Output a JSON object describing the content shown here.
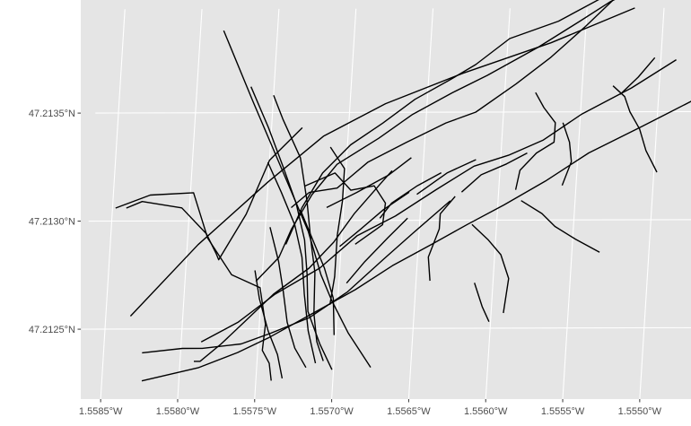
{
  "chart_data": {
    "type": "map-lines",
    "title": "",
    "xlabel": "",
    "ylabel": "",
    "x_ticks": [
      "1.5585°W",
      "1.5580°W",
      "1.5575°W",
      "1.5570°W",
      "1.5565°W",
      "1.5560°W",
      "1.5555°W",
      "1.5550°W"
    ],
    "y_ticks": [
      "47.2125°N",
      "47.2130°N",
      "47.2135°N"
    ],
    "xlim": [
      -1.55865,
      -1.55459
    ],
    "ylim": [
      47.21217,
      47.21398
    ],
    "background": "#e5e5e5",
    "grid_color": "#ffffff",
    "line_color": "#000000",
    "lines": [
      [
        [
          -1.55785,
          47.21388
        ],
        [
          -1.55763,
          47.21355
        ],
        [
          -1.55737,
          47.21317
        ],
        [
          -1.55722,
          47.21295
        ],
        [
          -1.55712,
          47.21275
        ],
        [
          -1.55704,
          47.21263
        ],
        [
          -1.55692,
          47.21248
        ],
        [
          -1.55676,
          47.21232
        ]
      ],
      [
        [
          -1.55834,
          47.21256
        ],
        [
          -1.55793,
          47.21289
        ],
        [
          -1.5575,
          47.21318
        ],
        [
          -1.55716,
          47.21339
        ],
        [
          -1.55677,
          47.21354
        ],
        [
          -1.55628,
          47.21368
        ],
        [
          -1.55572,
          47.21382
        ],
        [
          -1.55519,
          47.21398
        ]
      ],
      [
        [
          -1.55848,
          47.21306
        ],
        [
          -1.55826,
          47.21312
        ],
        [
          -1.55798,
          47.21313
        ],
        [
          -1.55787,
          47.21292
        ],
        [
          -1.5577,
          47.21275
        ],
        [
          -1.55751,
          47.21269
        ],
        [
          -1.55746,
          47.21252
        ],
        [
          -1.55747,
          47.2124
        ],
        [
          -1.55742,
          47.21234
        ],
        [
          -1.5574,
          47.21226
        ]
      ],
      [
        [
          -1.55841,
          47.21306
        ],
        [
          -1.55831,
          47.21309
        ],
        [
          -1.55805,
          47.21306
        ],
        [
          -1.55788,
          47.21294
        ],
        [
          -1.55781,
          47.21285
        ],
        [
          -1.55779,
          47.21282
        ],
        [
          -1.55763,
          47.21303
        ],
        [
          -1.5575,
          47.21328
        ],
        [
          -1.5573,
          47.21343
        ]
      ],
      [
        [
          -1.55791,
          47.21235
        ],
        [
          -1.55787,
          47.21235
        ],
        [
          -1.55774,
          47.21243
        ],
        [
          -1.5576,
          47.21253
        ],
        [
          -1.55742,
          47.21266
        ],
        [
          -1.5572,
          47.21278
        ],
        [
          -1.55705,
          47.2129
        ],
        [
          -1.55693,
          47.21303
        ],
        [
          -1.55677,
          47.21317
        ],
        [
          -1.5567,
          47.21323
        ]
      ],
      [
        [
          -1.55825,
          47.21239
        ],
        [
          -1.55799,
          47.21241
        ],
        [
          -1.55786,
          47.21241
        ],
        [
          -1.55761,
          47.21243
        ],
        [
          -1.55742,
          47.21248
        ],
        [
          -1.55718,
          47.21255
        ],
        [
          -1.55694,
          47.21267
        ],
        [
          -1.55672,
          47.21282
        ],
        [
          -1.55654,
          47.21294
        ],
        [
          -1.55631,
          47.21309
        ]
      ],
      [
        [
          -1.55787,
          47.21244
        ],
        [
          -1.55764,
          47.21253
        ],
        [
          -1.55741,
          47.21266
        ],
        [
          -1.55713,
          47.21278
        ],
        [
          -1.5569,
          47.21293
        ],
        [
          -1.55666,
          47.21302
        ],
        [
          -1.55641,
          47.21314
        ],
        [
          -1.55617,
          47.21325
        ],
        [
          -1.55595,
          47.2133
        ],
        [
          -1.55573,
          47.21337
        ],
        [
          -1.55549,
          47.21349
        ],
        [
          -1.55518,
          47.21361
        ],
        [
          -1.5549,
          47.21374
        ]
      ],
      [
        [
          -1.55824,
          47.21226
        ],
        [
          -1.55788,
          47.21232
        ],
        [
          -1.55763,
          47.21239
        ],
        [
          -1.55743,
          47.21246
        ],
        [
          -1.55716,
          47.21257
        ],
        [
          -1.55689,
          47.21268
        ],
        [
          -1.55666,
          47.21279
        ],
        [
          -1.55641,
          47.21289
        ],
        [
          -1.55619,
          47.21298
        ],
        [
          -1.55596,
          47.21307
        ],
        [
          -1.5557,
          47.21318
        ],
        [
          -1.55543,
          47.21331
        ],
        [
          -1.5551,
          47.21343
        ],
        [
          -1.55478,
          47.21355
        ]
      ],
      [
        [
          -1.55754,
          47.21272
        ],
        [
          -1.5574,
          47.21283
        ],
        [
          -1.55733,
          47.21296
        ],
        [
          -1.55721,
          47.21312
        ],
        [
          -1.55706,
          47.21326
        ],
        [
          -1.5568,
          47.21338
        ],
        [
          -1.55659,
          47.21349
        ],
        [
          -1.55634,
          47.21359
        ],
        [
          -1.55612,
          47.21367
        ],
        [
          -1.5558,
          47.2138
        ],
        [
          -1.55554,
          47.21392
        ],
        [
          -1.55535,
          47.21401
        ],
        [
          -1.55521,
          47.21406
        ]
      ],
      [
        [
          -1.55736,
          47.21289
        ],
        [
          -1.55727,
          47.21306
        ],
        [
          -1.55715,
          47.21322
        ],
        [
          -1.55698,
          47.21335
        ],
        [
          -1.55678,
          47.21345
        ],
        [
          -1.55658,
          47.21356
        ],
        [
          -1.55636,
          47.21365
        ],
        [
          -1.5562,
          47.21372
        ],
        [
          -1.55599,
          47.21384
        ],
        [
          -1.55568,
          47.21392
        ],
        [
          -1.55535,
          47.21405
        ]
      ],
      [
        [
          -1.55734,
          47.21306
        ],
        [
          -1.55723,
          47.21313
        ],
        [
          -1.55705,
          47.21315
        ],
        [
          -1.55686,
          47.21327
        ],
        [
          -1.55662,
          47.21336
        ],
        [
          -1.55637,
          47.21345
        ],
        [
          -1.55618,
          47.2135
        ],
        [
          -1.55593,
          47.21363
        ],
        [
          -1.55572,
          47.21375
        ],
        [
          -1.55551,
          47.21389
        ],
        [
          -1.55533,
          47.21402
        ]
      ],
      [
        [
          -1.5575,
          47.21358
        ],
        [
          -1.55743,
          47.21347
        ],
        [
          -1.5573,
          47.21329
        ],
        [
          -1.55724,
          47.21309
        ],
        [
          -1.5572,
          47.21291
        ],
        [
          -1.55716,
          47.21276
        ],
        [
          -1.55715,
          47.21257
        ],
        [
          -1.55712,
          47.21244
        ],
        [
          -1.55707,
          47.21235
        ]
      ],
      [
        [
          -1.55765,
          47.21362
        ],
        [
          -1.55752,
          47.21343
        ],
        [
          -1.55741,
          47.21325
        ],
        [
          -1.55731,
          47.21308
        ],
        [
          -1.55724,
          47.21291
        ],
        [
          -1.55721,
          47.21275
        ],
        [
          -1.55719,
          47.21258
        ],
        [
          -1.5571,
          47.21243
        ],
        [
          -1.55701,
          47.21231
        ]
      ],
      [
        [
          -1.55751,
          47.21327
        ],
        [
          -1.55741,
          47.21313
        ],
        [
          -1.55731,
          47.21298
        ],
        [
          -1.55725,
          47.21283
        ],
        [
          -1.55722,
          47.21266
        ],
        [
          -1.55718,
          47.21249
        ],
        [
          -1.55712,
          47.21234
        ]
      ],
      [
        [
          -1.55747,
          47.21297
        ],
        [
          -1.5574,
          47.21281
        ],
        [
          -1.55736,
          47.21268
        ],
        [
          -1.55732,
          47.21253
        ],
        [
          -1.55726,
          47.21241
        ],
        [
          -1.55718,
          47.21232
        ]
      ],
      [
        [
          -1.55755,
          47.21277
        ],
        [
          -1.55751,
          47.21264
        ],
        [
          -1.55744,
          47.21249
        ],
        [
          -1.55737,
          47.21238
        ],
        [
          -1.55733,
          47.21227
        ]
      ],
      [
        [
          -1.55726,
          47.21316
        ],
        [
          -1.55707,
          47.21322
        ],
        [
          -1.55696,
          47.21314
        ],
        [
          -1.55681,
          47.21316
        ],
        [
          -1.55673,
          47.21308
        ],
        [
          -1.55674,
          47.21298
        ],
        [
          -1.55691,
          47.21289
        ]
      ],
      [
        [
          -1.55711,
          47.21334
        ],
        [
          -1.55701,
          47.21324
        ],
        [
          -1.55701,
          47.21309
        ],
        [
          -1.55703,
          47.21293
        ],
        [
          -1.55703,
          47.21274
        ],
        [
          -1.55705,
          47.21261
        ]
      ],
      [
        [
          -1.55728,
          47.21305
        ],
        [
          -1.5572,
          47.21293
        ],
        [
          -1.5571,
          47.21278
        ],
        [
          -1.55703,
          47.21264
        ],
        [
          -1.55701,
          47.21247
        ]
      ],
      [
        [
          -1.55711,
          47.21306
        ],
        [
          -1.55692,
          47.21313
        ],
        [
          -1.55672,
          47.21321
        ],
        [
          -1.55658,
          47.21329
        ]
      ],
      [
        [
          -1.55701,
          47.21288
        ],
        [
          -1.55688,
          47.21296
        ],
        [
          -1.55674,
          47.21305
        ],
        [
          -1.55658,
          47.21313
        ]
      ],
      [
        [
          -1.55695,
          47.21271
        ],
        [
          -1.55684,
          47.21281
        ],
        [
          -1.5567,
          47.21292
        ],
        [
          -1.55658,
          47.21301
        ]
      ],
      [
        [
          -1.55676,
          47.21301
        ],
        [
          -1.55669,
          47.21308
        ],
        [
          -1.55653,
          47.21316
        ],
        [
          -1.55638,
          47.21322
        ]
      ],
      [
        [
          -1.55653,
          47.21312
        ],
        [
          -1.55634,
          47.21322
        ],
        [
          -1.55616,
          47.21328
        ]
      ],
      [
        [
          -1.55624,
          47.21313
        ],
        [
          -1.55612,
          47.21321
        ],
        [
          -1.55596,
          47.21326
        ],
        [
          -1.55583,
          47.21331
        ]
      ],
      [
        [
          -1.55628,
          47.21311
        ],
        [
          -1.55637,
          47.21303
        ],
        [
          -1.55637,
          47.21296
        ],
        [
          -1.55643,
          47.21283
        ],
        [
          -1.55641,
          47.21272
        ]
      ],
      [
        [
          -1.55616,
          47.21298
        ],
        [
          -1.55605,
          47.21291
        ],
        [
          -1.55596,
          47.21284
        ],
        [
          -1.5559,
          47.21273
        ],
        [
          -1.55592,
          47.21257
        ]
      ],
      [
        [
          -1.55612,
          47.21271
        ],
        [
          -1.55606,
          47.2126
        ],
        [
          -1.55601,
          47.21253
        ]
      ],
      [
        [
          -1.55585,
          47.21309
        ],
        [
          -1.55571,
          47.21303
        ],
        [
          -1.55562,
          47.21297
        ],
        [
          -1.55548,
          47.21291
        ],
        [
          -1.55532,
          47.21285
        ]
      ],
      [
        [
          -1.5558,
          47.21359
        ],
        [
          -1.55574,
          47.21352
        ],
        [
          -1.55566,
          47.21345
        ],
        [
          -1.55566,
          47.21336
        ],
        [
          -1.55577,
          47.21331
        ],
        [
          -1.55587,
          47.21323
        ],
        [
          -1.55589,
          47.21314
        ]
      ],
      [
        [
          -1.55561,
          47.21345
        ],
        [
          -1.55556,
          47.21336
        ],
        [
          -1.55554,
          47.21327
        ],
        [
          -1.55559,
          47.21316
        ]
      ],
      [
        [
          -1.5553,
          47.21362
        ],
        [
          -1.55522,
          47.21357
        ],
        [
          -1.55518,
          47.2135
        ],
        [
          -1.55511,
          47.21342
        ],
        [
          -1.55506,
          47.21332
        ],
        [
          -1.55498,
          47.21322
        ]
      ],
      [
        [
          -1.55525,
          47.21358
        ],
        [
          -1.55514,
          47.21366
        ],
        [
          -1.55504,
          47.21375
        ]
      ]
    ]
  }
}
